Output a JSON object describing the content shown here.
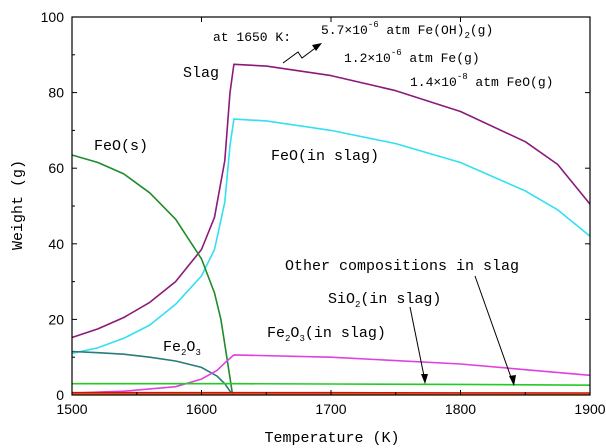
{
  "chart_data": {
    "type": "line",
    "xlabel": "Temperature (K)",
    "ylabel": "Weight (g)",
    "xlim": [
      1500,
      1900
    ],
    "ylim": [
      0,
      100
    ],
    "xticks": [
      1500,
      1600,
      1700,
      1800,
      1900
    ],
    "yticks": [
      0,
      20,
      40,
      60,
      80,
      100
    ],
    "grid": false,
    "series": [
      {
        "name": "Slag",
        "color": "#8b1a7a",
        "x": [
          1500,
          1520,
          1540,
          1560,
          1580,
          1600,
          1610,
          1618,
          1622,
          1625,
          1650,
          1700,
          1750,
          1800,
          1850,
          1875,
          1900
        ],
        "y": [
          15.2,
          17.5,
          20.5,
          24.5,
          30.0,
          38.5,
          47.0,
          62.0,
          80.0,
          87.5,
          87.0,
          84.5,
          80.5,
          75.0,
          67.0,
          61.0,
          50.5
        ]
      },
      {
        "name": "FeO(in slag)",
        "color": "#33e0f0",
        "x": [
          1500,
          1520,
          1540,
          1560,
          1580,
          1600,
          1610,
          1618,
          1622,
          1625,
          1650,
          1700,
          1750,
          1800,
          1850,
          1875,
          1900
        ],
        "y": [
          11.0,
          12.5,
          15.0,
          18.5,
          24.0,
          31.5,
          38.5,
          51.0,
          66.0,
          73.0,
          72.5,
          70.0,
          66.5,
          61.5,
          54.0,
          49.0,
          42.0
        ]
      },
      {
        "name": "FeO(s)",
        "color": "#1f8b2a",
        "x": [
          1500,
          1520,
          1540,
          1560,
          1580,
          1600,
          1610,
          1615,
          1620,
          1624
        ],
        "y": [
          63.5,
          61.5,
          58.5,
          53.5,
          46.5,
          36.0,
          27.0,
          20.0,
          9.0,
          0.0
        ]
      },
      {
        "name": "Fe2O3",
        "color": "#2a7a7a",
        "x": [
          1500,
          1520,
          1540,
          1560,
          1580,
          1600,
          1612,
          1618,
          1622,
          1625
        ],
        "y": [
          11.5,
          11.2,
          10.8,
          10.0,
          9.0,
          7.3,
          5.0,
          3.0,
          1.0,
          0.0
        ]
      },
      {
        "name": "Fe2O3(in slag)",
        "color": "#e040e0",
        "x": [
          1500,
          1540,
          1580,
          1600,
          1612,
          1618,
          1625,
          1700,
          1800,
          1900
        ],
        "y": [
          0.5,
          1.0,
          2.2,
          4.2,
          6.5,
          8.5,
          10.6,
          10.0,
          8.2,
          5.2
        ]
      },
      {
        "name": "SiO2(in slag)",
        "color": "#22cc22",
        "x": [
          1500,
          1600,
          1625,
          1700,
          1800,
          1900
        ],
        "y": [
          3.0,
          3.0,
          3.0,
          2.9,
          2.8,
          2.6
        ]
      },
      {
        "name": "Other compositions in slag",
        "color": "#cc1111",
        "x": [
          1500,
          1600,
          1625,
          1700,
          1800,
          1900
        ],
        "y": [
          0.6,
          0.6,
          0.6,
          0.6,
          0.55,
          0.5
        ]
      },
      {
        "name": "Other compositions in slag 2",
        "color": "#ff6a00",
        "x": [
          1500,
          1600,
          1625,
          1700,
          1800,
          1900
        ],
        "y": [
          0.15,
          0.15,
          0.15,
          0.15,
          0.15,
          0.15
        ]
      }
    ],
    "annotations": {
      "slag": "Slag",
      "feo_slag": "FeO(in slag)",
      "feo_s": "FeO(s)",
      "fe2o3": "Fe",
      "fe2o3_sub2": "2",
      "fe2o3_o": "O",
      "fe2o3_sub3": "3",
      "fe2o3_slag_fe": "Fe",
      "fe2o3_slag_sub2": "2",
      "fe2o3_slag_o": "O",
      "fe2o3_slag_sub3": "3",
      "fe2o3_slag_rest": "(in slag)",
      "sio2_si": "SiO",
      "sio2_sub": "2",
      "sio2_rest": "(in slag)",
      "other": "Other compositions in slag",
      "gas_prefix": "at 1650 K:",
      "gas1_a": "5.7×10",
      "gas1_exp": "-6",
      "gas1_b": " atm Fe(OH)",
      "gas1_sub": "2",
      "gas1_c": "(g)",
      "gas2_a": "1.2×10",
      "gas2_exp": "-6",
      "gas2_b": " atm Fe(g)",
      "gas3_a": "1.4×10",
      "gas3_exp": "-8",
      "gas3_b": " atm FeO(g)"
    }
  }
}
